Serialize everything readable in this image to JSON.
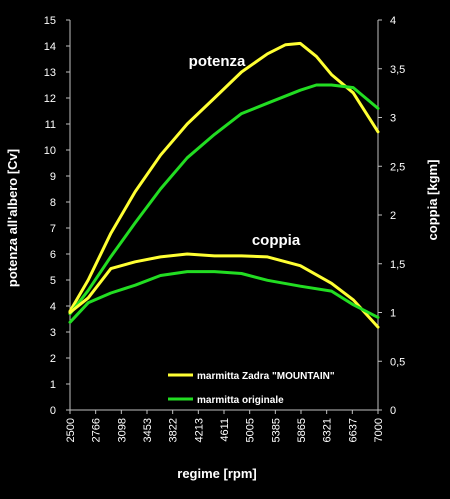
{
  "chart_data": {
    "type": "line",
    "xlabel": "regime [rpm]",
    "ylabel_left": "potenza all'albero [Cv]",
    "ylabel_right": "coppia [kgm]",
    "x_ticks": [
      "2500",
      "2766",
      "3098",
      "3453",
      "3822",
      "4213",
      "4611",
      "5005",
      "5385",
      "5865",
      "6321",
      "6637",
      "7000"
    ],
    "x_range": [
      2500,
      7000
    ],
    "y_left_range": [
      0,
      15
    ],
    "y_left_ticks": [
      "0",
      "1",
      "2",
      "3",
      "4",
      "5",
      "6",
      "7",
      "8",
      "9",
      "10",
      "11",
      "12",
      "13",
      "14",
      "15"
    ],
    "y_right_range": [
      0,
      4
    ],
    "y_right_ticks": [
      "0",
      "0,5",
      "1",
      "1,5",
      "2",
      "2,5",
      "3",
      "3,5",
      "4"
    ],
    "grid": false,
    "legend_position": "bottom-right",
    "annotations": {
      "power": "potenza",
      "torque": "coppia"
    },
    "colors": {
      "zadra": "#ffff33",
      "originale": "#22dd22"
    },
    "series": [
      {
        "name": "marmitta Zadra \"MOUNTAIN\"",
        "kind": "power",
        "axis": "left",
        "color": "#ffff33",
        "x": [
          2500,
          2766,
          3098,
          3453,
          3822,
          4213,
          4611,
          5005,
          5385,
          5650,
          5865,
          6100,
          6321,
          6637,
          7000
        ],
        "values": [
          3.8,
          5.0,
          6.8,
          8.4,
          9.8,
          11.0,
          12.0,
          13.0,
          13.7,
          14.05,
          14.1,
          13.6,
          12.9,
          12.2,
          10.7
        ]
      },
      {
        "name": "marmitta originale",
        "kind": "power",
        "axis": "left",
        "color": "#22dd22",
        "x": [
          2500,
          2766,
          3098,
          3453,
          3822,
          4213,
          4611,
          5005,
          5385,
          5865,
          6100,
          6321,
          6637,
          7000
        ],
        "values": [
          3.7,
          4.6,
          5.9,
          7.2,
          8.5,
          9.7,
          10.6,
          11.4,
          11.8,
          12.3,
          12.5,
          12.5,
          12.4,
          11.6
        ]
      },
      {
        "name": "marmitta Zadra \"MOUNTAIN\"",
        "kind": "torque",
        "axis": "right",
        "color": "#ffff33",
        "x": [
          2500,
          2766,
          3098,
          3453,
          3822,
          4213,
          4611,
          5005,
          5385,
          5865,
          6321,
          6637,
          7000
        ],
        "values": [
          1.0,
          1.15,
          1.45,
          1.52,
          1.57,
          1.6,
          1.58,
          1.58,
          1.57,
          1.48,
          1.3,
          1.13,
          0.85
        ]
      },
      {
        "name": "marmitta originale",
        "kind": "torque",
        "axis": "right",
        "color": "#22dd22",
        "x": [
          2500,
          2766,
          3098,
          3453,
          3822,
          4213,
          4611,
          5005,
          5385,
          5865,
          6321,
          6637,
          7000
        ],
        "values": [
          0.9,
          1.1,
          1.2,
          1.28,
          1.38,
          1.42,
          1.42,
          1.4,
          1.33,
          1.27,
          1.22,
          1.08,
          0.95
        ]
      }
    ],
    "legend": [
      {
        "label": "marmitta Zadra \"MOUNTAIN\"",
        "color": "#ffff33"
      },
      {
        "label": "marmitta originale",
        "color": "#22dd22"
      }
    ]
  }
}
